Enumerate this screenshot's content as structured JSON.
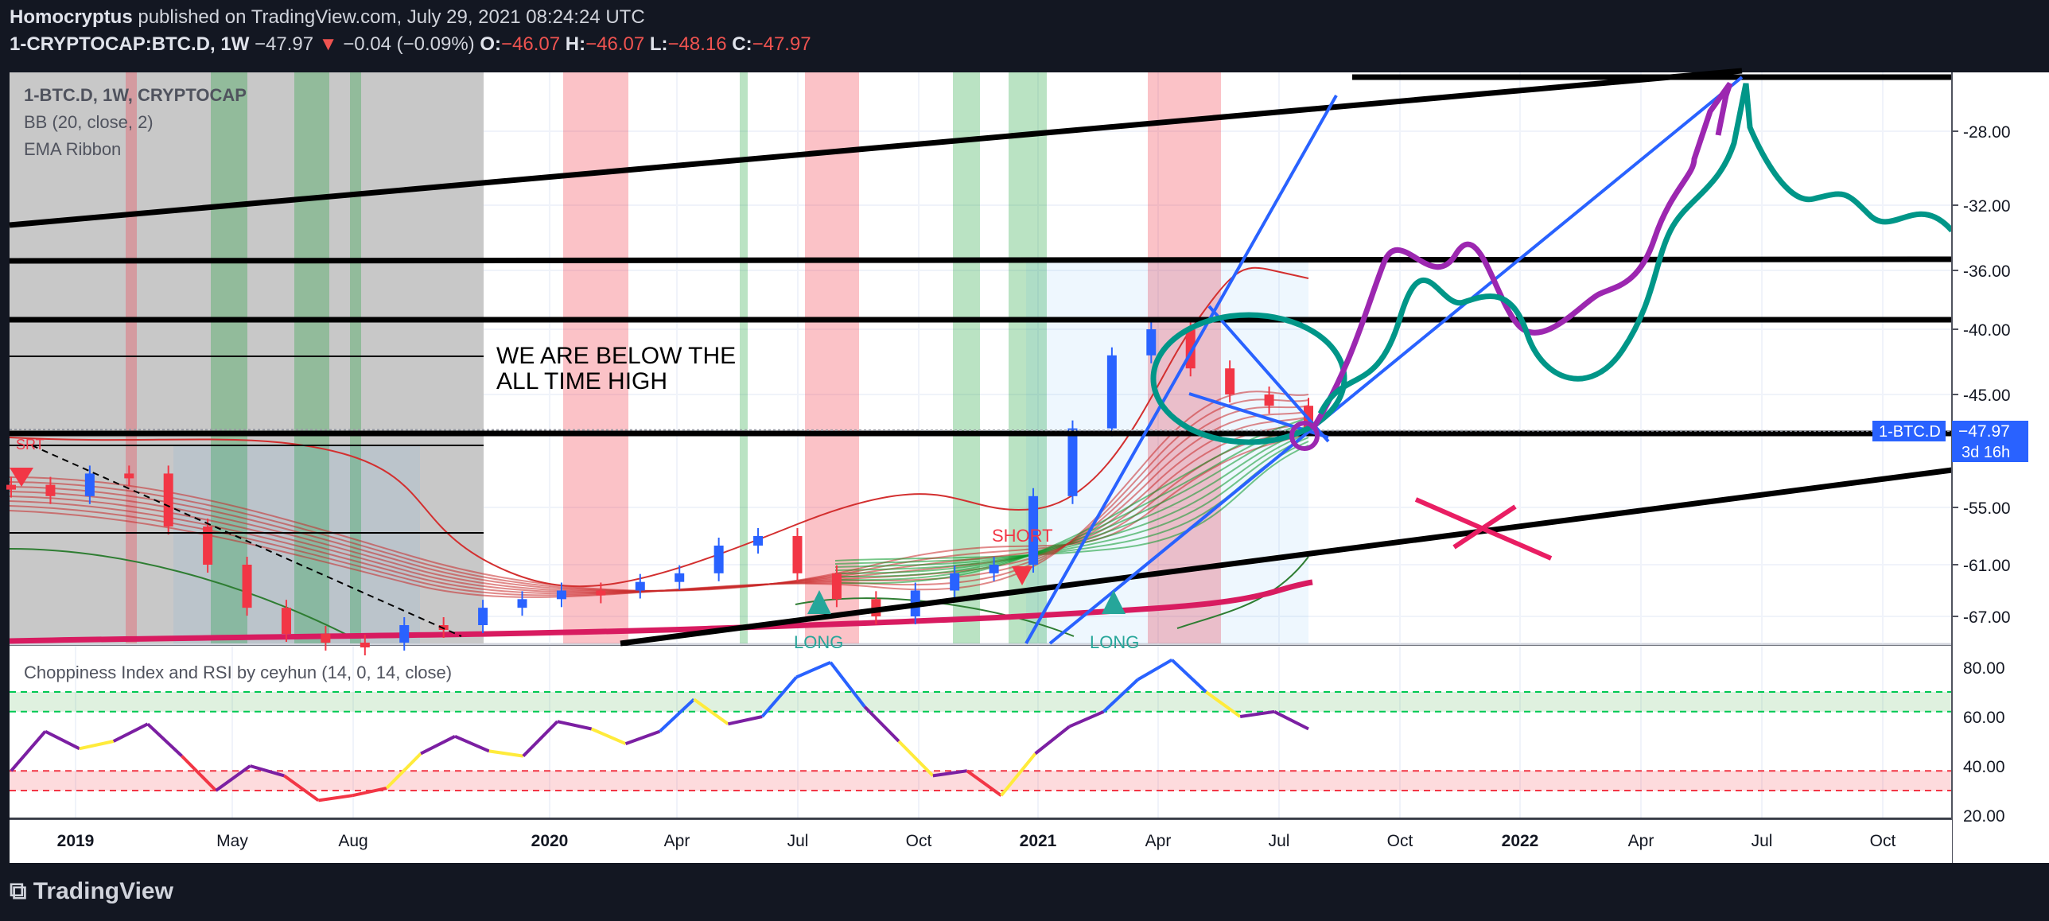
{
  "header": {
    "author": "Homocryptus",
    "published": "published on TradingView.com, July 29, 2021 08:24:24 UTC",
    "symbol": "1-CRYPTOCAP:BTC.D, 1W",
    "last": "−47.97",
    "change": "−0.04 (−0.09%)",
    "o_label": "O:",
    "o_value": "−46.07",
    "h_label": "H:",
    "h_value": "−46.07",
    "l_label": "L:",
    "l_value": "−48.16",
    "c_label": "C:",
    "c_value": "−47.97"
  },
  "legend": {
    "line1": "1-BTC.D, 1W, CRYPTOCAP",
    "line2": "BB (20, close, 2)",
    "line3": "EMA Ribbon"
  },
  "footer": {
    "brand": "TradingView"
  },
  "chart_data": [
    {
      "type": "line",
      "title": "1-BTC.D, 1W, CRYPTOCAP",
      "y_ticks": [
        "-28.00",
        "-32.00",
        "-36.00",
        "-40.00",
        "-45.00",
        "-55.00",
        "-61.00",
        "-67.00"
      ],
      "x_ticks": [
        "2019",
        "May",
        "Aug",
        "2020",
        "Apr",
        "Jul",
        "Oct",
        "2021",
        "Apr",
        "Jul",
        "Oct",
        "2022",
        "Apr",
        "Jul",
        "Oct"
      ],
      "price_label": "1-BTC.D",
      "price_value": "−47.97",
      "countdown": "3d 16h",
      "annotations": [
        "WE ARE BELOW THE",
        "ALL TIME HIGH",
        "SHORT",
        "LONG",
        "LONG",
        "SRT"
      ],
      "series": [
        {
          "name": "1-BTC.D close",
          "values": [
            -53,
            -54,
            -52,
            -52,
            -57,
            -61,
            -66,
            -69,
            -70,
            -70,
            -68,
            -68,
            -66,
            -65,
            -64,
            -64,
            -63,
            -62,
            -59,
            -58,
            -62,
            -65,
            -67,
            -64,
            -62,
            -61,
            -54,
            -48,
            -42,
            -40,
            -43,
            -45,
            -46,
            -48
          ]
        }
      ]
    },
    {
      "type": "line",
      "title": "Choppiness Index and RSI by ceyhun (14, 0, 14, close)",
      "y_ticks": [
        "80.00",
        "60.00",
        "40.00",
        "20.00"
      ],
      "bands": {
        "upper": [
          62,
          70
        ],
        "lower": [
          30,
          38
        ]
      },
      "series": [
        {
          "name": "RSI",
          "values": [
            38,
            54,
            47,
            50,
            57,
            44,
            30,
            40,
            36,
            26,
            28,
            31,
            45,
            52,
            46,
            44,
            58,
            55,
            49,
            54,
            67,
            57,
            60,
            76,
            82,
            64,
            50,
            36,
            38,
            28,
            45,
            56,
            62,
            75,
            83,
            70,
            60,
            62,
            55
          ]
        }
      ]
    }
  ]
}
